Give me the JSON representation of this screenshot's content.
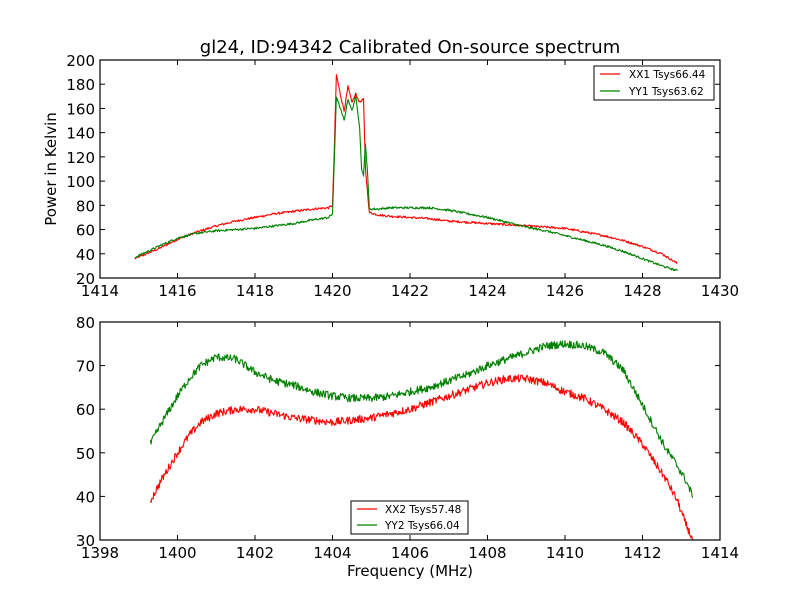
{
  "chart_data": [
    {
      "type": "line",
      "title": "gl24, ID:94342 Calibrated On-source spectrum",
      "xlabel": "",
      "ylabel": "Power in Kelvin",
      "xlim": [
        1414,
        1430
      ],
      "ylim": [
        20,
        200
      ],
      "xticks": [
        "1414",
        "1416",
        "1418",
        "1420",
        "1422",
        "1424",
        "1426",
        "1428",
        "1430"
      ],
      "yticks": [
        "20",
        "40",
        "60",
        "80",
        "100",
        "120",
        "140",
        "160",
        "180",
        "200"
      ],
      "legend_position": "upper-right",
      "series": [
        {
          "name": "XX1 Tsys66.44",
          "color": "#ff0000",
          "x": [
            1414.9,
            1415.5,
            1416,
            1416.5,
            1417,
            1417.5,
            1418,
            1418.5,
            1419,
            1419.5,
            1419.9,
            1420.0,
            1420.05,
            1420.1,
            1420.2,
            1420.3,
            1420.4,
            1420.5,
            1420.6,
            1420.7,
            1420.8,
            1420.85,
            1420.95,
            1421.2,
            1421.5,
            1422,
            1422.5,
            1423,
            1423.5,
            1424,
            1424.5,
            1425,
            1425.5,
            1426,
            1426.5,
            1427,
            1427.5,
            1428,
            1428.5,
            1428.9
          ],
          "y": [
            36,
            44,
            52,
            58,
            63,
            67,
            70,
            73,
            75,
            77,
            78,
            80,
            130,
            188,
            172,
            158,
            178,
            165,
            172,
            165,
            168,
            110,
            74,
            72,
            71,
            70,
            69,
            67,
            66,
            65,
            64,
            63,
            62,
            61,
            58,
            55,
            51,
            46,
            40,
            32
          ]
        },
        {
          "name": "YY1 Tsys63.62",
          "color": "#008000",
          "x": [
            1414.9,
            1415.5,
            1416,
            1416.5,
            1417,
            1417.5,
            1418,
            1418.5,
            1419,
            1419.5,
            1419.9,
            1420.0,
            1420.05,
            1420.1,
            1420.2,
            1420.3,
            1420.4,
            1420.5,
            1420.6,
            1420.7,
            1420.75,
            1420.8,
            1420.85,
            1420.9,
            1420.95,
            1421.2,
            1421.5,
            1422,
            1422.5,
            1423,
            1423.5,
            1424,
            1424.5,
            1425,
            1425.5,
            1426,
            1426.5,
            1427,
            1427.5,
            1428,
            1428.5,
            1428.9
          ],
          "y": [
            37,
            46,
            53,
            57,
            59,
            60,
            61,
            63,
            65,
            68,
            70,
            73,
            120,
            170,
            160,
            150,
            168,
            158,
            170,
            145,
            110,
            105,
            130,
            110,
            77,
            77,
            78,
            78,
            78,
            76,
            73,
            70,
            66,
            62,
            59,
            55,
            51,
            47,
            42,
            36,
            30,
            26
          ]
        }
      ]
    },
    {
      "type": "line",
      "title": "",
      "xlabel": "Frequency (MHz)",
      "ylabel": "",
      "xlim": [
        1398,
        1414
      ],
      "ylim": [
        30,
        80
      ],
      "xticks": [
        "1398",
        "1400",
        "1402",
        "1404",
        "1406",
        "1408",
        "1410",
        "1412",
        "1414"
      ],
      "yticks": [
        "30",
        "40",
        "50",
        "60",
        "70",
        "80"
      ],
      "legend_position": "lower-center",
      "series": [
        {
          "name": "XX2 Tsys57.48",
          "color": "#ff0000",
          "x": [
            1399.3,
            1399.6,
            1400,
            1400.3,
            1400.6,
            1401,
            1401.5,
            1402,
            1402.5,
            1403,
            1403.5,
            1404,
            1404.5,
            1405,
            1405.5,
            1406,
            1406.5,
            1407,
            1407.5,
            1408,
            1408.5,
            1409,
            1409.5,
            1410,
            1410.5,
            1411,
            1411.5,
            1412,
            1412.3,
            1412.6,
            1412.9,
            1413.1,
            1413.3
          ],
          "y": [
            39,
            44,
            50,
            54,
            57,
            59,
            60,
            60,
            59,
            58,
            57.5,
            57,
            57.5,
            58,
            59,
            60,
            61.5,
            63,
            64.5,
            66,
            67,
            67,
            66,
            64,
            62.5,
            60,
            57,
            52,
            48,
            44,
            39,
            34,
            30
          ]
        },
        {
          "name": "YY2 Tsys66.04",
          "color": "#008000",
          "x": [
            1399.3,
            1399.6,
            1400,
            1400.3,
            1400.6,
            1401,
            1401.5,
            1402,
            1402.5,
            1403,
            1403.5,
            1404,
            1404.5,
            1405,
            1405.5,
            1406,
            1406.5,
            1407,
            1407.5,
            1408,
            1408.5,
            1409,
            1409.5,
            1410,
            1410.5,
            1411,
            1411.5,
            1412,
            1412.3,
            1412.6,
            1412.9,
            1413.1,
            1413.3
          ],
          "y": [
            52,
            57,
            63,
            67,
            70,
            72,
            71.5,
            68.5,
            66.5,
            65.5,
            64,
            63,
            62.5,
            62.5,
            63,
            64,
            65,
            66.5,
            68,
            70,
            71.5,
            73,
            74.5,
            75,
            74.5,
            73,
            69,
            61,
            56,
            51,
            47,
            44,
            40
          ]
        }
      ]
    }
  ]
}
